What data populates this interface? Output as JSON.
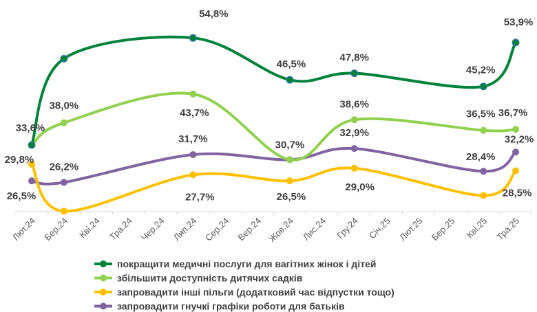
{
  "chart_data": {
    "type": "line",
    "title": "",
    "xlabel": "",
    "ylabel": "",
    "grid": false,
    "legend_position": "bottom",
    "categories": [
      "Лют.24",
      "Бер.24",
      "Кві.24",
      "Тра.24",
      "Чер.24",
      "Лип.24",
      "Сер.24",
      "Вер.24",
      "Жов.24",
      "Лис.24",
      "Гру.24",
      "Січ.25",
      "Лют.25",
      "Бер.25",
      "Кві.25",
      "Тра.25"
    ],
    "series": [
      {
        "name": "покращити медичні послуги для вагітних жінок і дітей",
        "color": "#00823B",
        "values": [
          33.6,
          50.7,
          null,
          null,
          null,
          54.8,
          null,
          null,
          46.5,
          null,
          47.8,
          null,
          null,
          null,
          45.2,
          53.9
        ],
        "labels": [
          "33,6%",
          "",
          "",
          "",
          "",
          "54,8%",
          "",
          "",
          "46,5%",
          "",
          "47,8%",
          "",
          "",
          "",
          "45,2%",
          "53,9%"
        ]
      },
      {
        "name": "збільшити доступність дитячих садків",
        "color": "#92D050",
        "values": [
          33.6,
          38.0,
          null,
          null,
          null,
          43.7,
          null,
          null,
          30.7,
          null,
          38.6,
          null,
          null,
          null,
          36.5,
          36.7
        ],
        "labels": [
          "",
          "38,0%",
          "",
          "",
          "",
          "43,7%",
          "",
          "",
          "30,7%",
          "",
          "38,6%",
          "",
          "",
          "",
          "36,5%",
          "36,7%"
        ]
      },
      {
        "name": "запровадити інші пільги (додатковий час відпустки тощо)",
        "color": "#FFC000",
        "values": [
          29.8,
          20.5,
          null,
          null,
          null,
          27.7,
          null,
          null,
          26.5,
          null,
          29.0,
          null,
          null,
          null,
          23.6,
          28.5
        ],
        "labels": [
          "29,8%",
          "",
          "",
          "",
          "",
          "27,7%",
          "",
          "",
          "26,5%",
          "",
          "29,0%",
          "",
          "",
          "",
          "",
          "28,5%"
        ]
      },
      {
        "name": "запровадити гнучкі графіки роботи для батьків",
        "color": "#8064A2",
        "values": [
          26.5,
          26.2,
          null,
          null,
          null,
          31.7,
          null,
          null,
          30.7,
          null,
          32.9,
          null,
          null,
          null,
          28.4,
          32.2
        ],
        "labels": [
          "26,5%",
          "26,2%",
          "",
          "",
          "",
          "31,7%",
          "",
          "",
          "",
          "",
          "32,9%",
          "",
          "",
          "",
          "28,4%",
          "32,2%"
        ]
      }
    ]
  }
}
